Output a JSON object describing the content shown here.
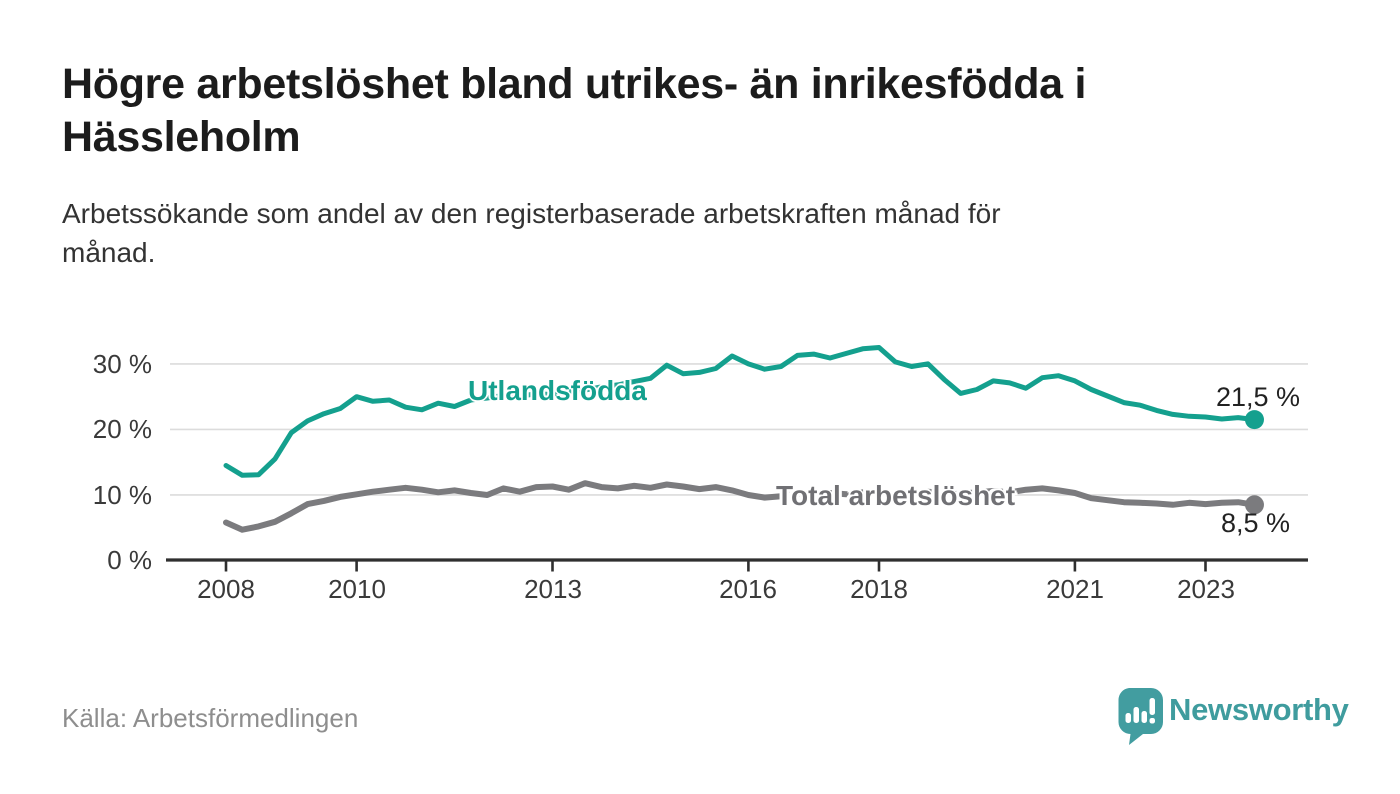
{
  "header": {
    "title": "Högre arbetslöshet bland utrikes- än inrikesfödda i\nHässleholm",
    "subtitle": "Arbetssökande som andel av den registerbaserade arbetskraften månad för\nmånad."
  },
  "footer": {
    "source": "Källa: Arbetsförmedlingen",
    "brand": "Newsworthy",
    "brand_color": "#429da0"
  },
  "chart_data": {
    "type": "line",
    "title": "Högre arbetslöshet bland utrikes- än inrikesfödda i Hässleholm",
    "subtitle": "Arbetssökande som andel av den registerbaserade arbetskraften månad för månad.",
    "unit": "%",
    "grid": "horizontal",
    "legend_position": "inline-labels",
    "ylim": [
      0,
      34
    ],
    "xlim": [
      2007.15,
      2024.6
    ],
    "y_ticks": [
      "0 %",
      "10 %",
      "20 %",
      "30 %"
    ],
    "y_tick_values": [
      0,
      10,
      20,
      30
    ],
    "x_ticks": [
      "2008",
      "2010",
      "2013",
      "2016",
      "2018",
      "2021",
      "2023"
    ],
    "x_tick_years": [
      2008,
      2010,
      2013,
      2016,
      2018,
      2021,
      2023
    ],
    "x_period": "monthly 2008-01 to 2023-10 (sampled quarterly below)",
    "x": [
      2008,
      2008.25,
      2008.5,
      2008.75,
      2009,
      2009.25,
      2009.5,
      2009.75,
      2010,
      2010.25,
      2010.5,
      2010.75,
      2011,
      2011.25,
      2011.5,
      2011.75,
      2012,
      2012.25,
      2012.5,
      2012.75,
      2013,
      2013.25,
      2013.5,
      2013.75,
      2014,
      2014.25,
      2014.5,
      2014.75,
      2015,
      2015.25,
      2015.5,
      2015.75,
      2016,
      2016.25,
      2016.5,
      2016.75,
      2017,
      2017.25,
      2017.5,
      2017.75,
      2018,
      2018.25,
      2018.5,
      2018.75,
      2019,
      2019.25,
      2019.5,
      2019.75,
      2020,
      2020.25,
      2020.5,
      2020.75,
      2021,
      2021.25,
      2021.5,
      2021.75,
      2022,
      2022.25,
      2022.5,
      2022.75,
      2023,
      2023.25,
      2023.5,
      2023.75
    ],
    "series": [
      {
        "name": "Utlandsfödda",
        "color": "#14a08e",
        "line_width": 5,
        "end_label": "21,5 %",
        "end_value": 21.5,
        "values": [
          14.5,
          13.0,
          13.1,
          15.5,
          19.5,
          21.3,
          22.4,
          23.2,
          25.0,
          24.3,
          24.5,
          23.4,
          23.0,
          24.0,
          23.5,
          24.5,
          24.8,
          25.2,
          25.0,
          25.5,
          25.3,
          25.8,
          26.0,
          26.5,
          26.8,
          27.3,
          27.8,
          29.8,
          28.5,
          28.7,
          29.3,
          31.2,
          30.0,
          29.2,
          29.6,
          31.3,
          31.5,
          30.9,
          31.6,
          32.3,
          32.5,
          30.3,
          29.6,
          30.0,
          27.6,
          25.5,
          26.1,
          27.4,
          27.1,
          26.3,
          27.9,
          28.2,
          27.4,
          26.1,
          25.1,
          24.1,
          23.7,
          22.9,
          22.3,
          22.0,
          21.9,
          21.6,
          21.8,
          21.5
        ]
      },
      {
        "name": "Total arbetslöshet",
        "color": "#7b7b7e",
        "line_width": 6,
        "end_label": "8,5 %",
        "end_value": 8.5,
        "values": [
          5.8,
          4.7,
          5.2,
          5.9,
          7.2,
          8.6,
          9.1,
          9.7,
          10.1,
          10.5,
          10.8,
          11.1,
          10.8,
          10.4,
          10.7,
          10.3,
          10.0,
          11.0,
          10.5,
          11.2,
          11.3,
          10.8,
          11.8,
          11.2,
          11.0,
          11.4,
          11.1,
          11.6,
          11.3,
          10.9,
          11.2,
          10.7,
          10.0,
          9.6,
          9.8,
          10.2,
          10.0,
          10.3,
          10.1,
          10.4,
          10.2,
          10.0,
          10.3,
          10.5,
          10.3,
          10.2,
          10.4,
          10.6,
          10.4,
          10.8,
          11.0,
          10.7,
          10.3,
          9.5,
          9.2,
          8.9,
          8.8,
          8.7,
          8.5,
          8.8,
          8.6,
          8.8,
          8.9,
          8.5
        ]
      }
    ]
  }
}
